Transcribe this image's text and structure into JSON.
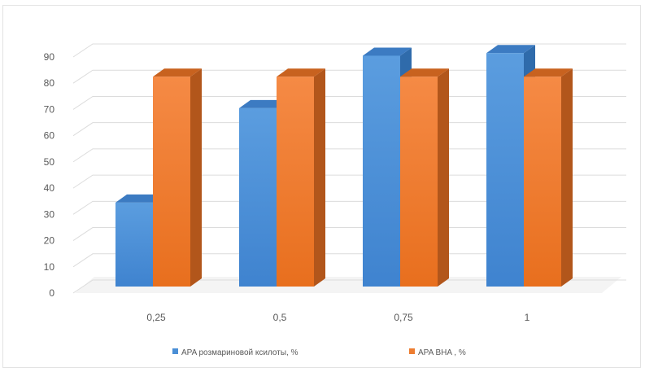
{
  "chart_data": {
    "type": "bar",
    "categories": [
      "0,25",
      "0,5",
      "0,75",
      "1"
    ],
    "series": [
      {
        "name": "APA розмариновой ксилоты, %",
        "values": [
          32,
          68,
          88,
          89
        ],
        "color": "#4a8fd6"
      },
      {
        "name": "APA BHA , %",
        "values": [
          80,
          80,
          80,
          80
        ],
        "color": "#ed7d31"
      }
    ],
    "ylim": [
      0,
      90
    ],
    "yticks": [
      0,
      10,
      20,
      30,
      40,
      50,
      60,
      70,
      80,
      90
    ],
    "grid": true,
    "legend": "bottom",
    "three_d": true
  }
}
